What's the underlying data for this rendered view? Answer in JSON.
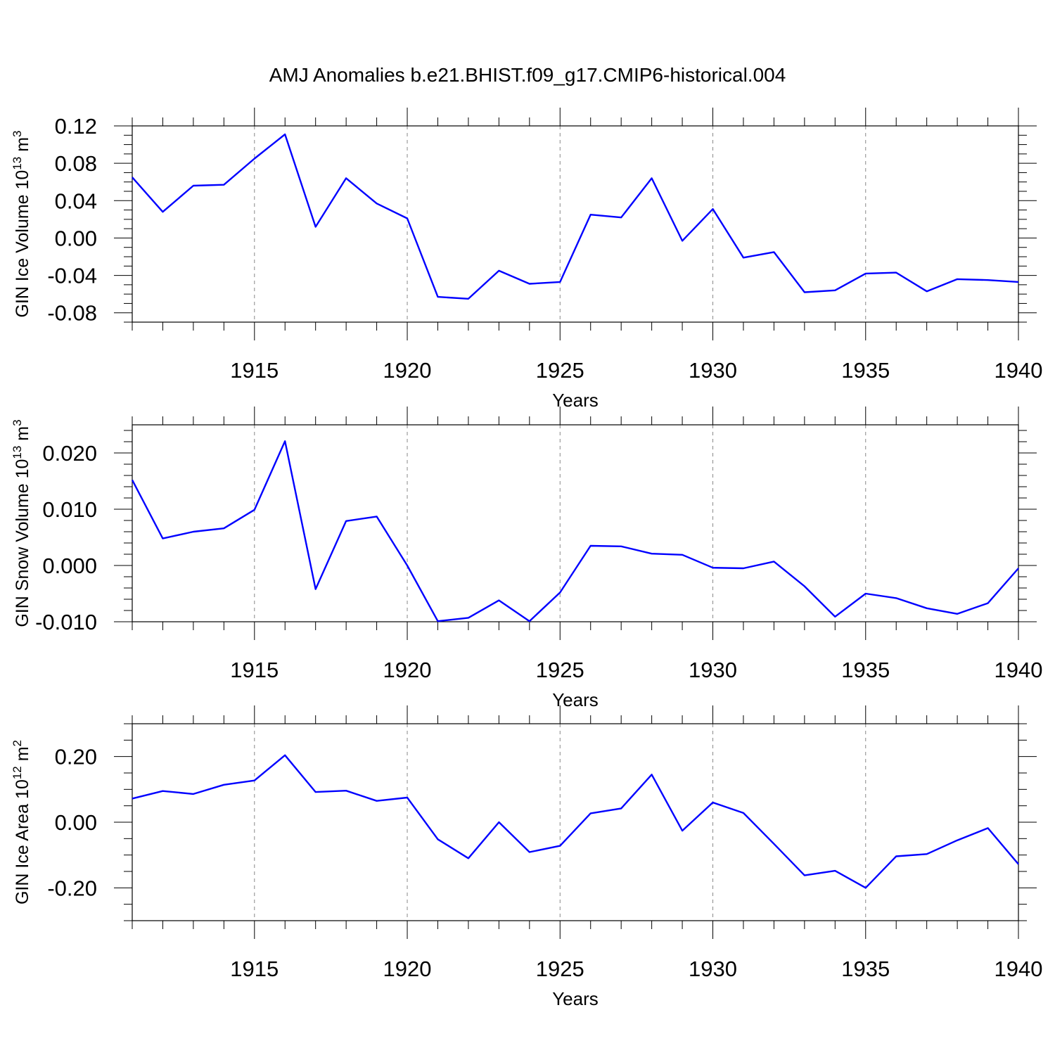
{
  "title": "AMJ Anomalies b.e21.BHIST.f09_g17.CMIP6-historical.004",
  "line_color": "#0000ff",
  "chart_data": [
    {
      "type": "line",
      "ylabel": "GIN Ice Volume 10",
      "ylabel_sup_exp": "13",
      "ylabel_unit": " m",
      "ylabel_sup_unit": "3",
      "xlabel": "Years",
      "xlim": [
        1911,
        1940
      ],
      "ylim": [
        -0.09,
        0.12
      ],
      "x_ticks": [
        1915,
        1920,
        1925,
        1930,
        1935,
        1940
      ],
      "x_tick_labels": [
        "1915",
        "1920",
        "1925",
        "1930",
        "1935",
        "1940"
      ],
      "y_ticks": [
        -0.08,
        -0.04,
        0.0,
        0.04,
        0.08,
        0.12
      ],
      "y_tick_labels": [
        "-0.08",
        "-0.04",
        "0.00",
        "0.04",
        "0.08",
        "0.12"
      ],
      "y_minor_step": 0.01,
      "grid": "dashed vertical at major x ticks",
      "x": [
        1911,
        1912,
        1913,
        1914,
        1915,
        1916,
        1917,
        1918,
        1919,
        1920,
        1921,
        1922,
        1923,
        1924,
        1925,
        1926,
        1927,
        1928,
        1929,
        1930,
        1931,
        1932,
        1933,
        1934,
        1935,
        1936,
        1937,
        1938,
        1939,
        1940
      ],
      "values": [
        0.065,
        0.028,
        0.056,
        0.057,
        0.085,
        0.111,
        0.012,
        0.064,
        0.037,
        0.021,
        -0.063,
        -0.065,
        -0.035,
        -0.049,
        -0.047,
        0.025,
        0.022,
        0.064,
        -0.003,
        0.031,
        -0.021,
        -0.015,
        -0.058,
        -0.056,
        -0.038,
        -0.037,
        -0.057,
        -0.044,
        -0.045,
        -0.047
      ]
    },
    {
      "type": "line",
      "ylabel": "GIN Snow Volume 10",
      "ylabel_sup_exp": "13",
      "ylabel_unit": " m",
      "ylabel_sup_unit": "3",
      "xlabel": "Years",
      "xlim": [
        1911,
        1940
      ],
      "ylim": [
        -0.01,
        0.025
      ],
      "x_ticks": [
        1915,
        1920,
        1925,
        1930,
        1935,
        1940
      ],
      "x_tick_labels": [
        "1915",
        "1920",
        "1925",
        "1930",
        "1935",
        "1940"
      ],
      "y_ticks": [
        -0.01,
        0.0,
        0.01,
        0.02
      ],
      "y_tick_labels": [
        "-0.010",
        "0.000",
        "0.010",
        "0.020"
      ],
      "y_minor_step": 0.002,
      "grid": "dashed vertical at major x ticks",
      "x": [
        1911,
        1912,
        1913,
        1914,
        1915,
        1916,
        1917,
        1918,
        1919,
        1920,
        1921,
        1922,
        1923,
        1924,
        1925,
        1926,
        1927,
        1928,
        1929,
        1930,
        1931,
        1932,
        1933,
        1934,
        1935,
        1936,
        1937,
        1938,
        1939,
        1940
      ],
      "values": [
        0.0152,
        0.0048,
        0.006,
        0.0066,
        0.0099,
        0.0221,
        -0.0042,
        0.0079,
        0.0087,
        0.0,
        -0.0099,
        -0.0093,
        -0.0062,
        -0.0099,
        -0.0048,
        0.0035,
        0.0034,
        0.0021,
        0.0019,
        -0.0004,
        -0.0005,
        0.0007,
        -0.0037,
        -0.0091,
        -0.005,
        -0.0058,
        -0.0076,
        -0.0086,
        -0.0067,
        -0.0005
      ]
    },
    {
      "type": "line",
      "ylabel": "GIN Ice Area 10",
      "ylabel_sup_exp": "12",
      "ylabel_unit": " m",
      "ylabel_sup_unit": "2",
      "xlabel": "Years",
      "xlim": [
        1911,
        1940
      ],
      "ylim": [
        -0.3,
        0.3
      ],
      "x_ticks": [
        1915,
        1920,
        1925,
        1930,
        1935,
        1940
      ],
      "x_tick_labels": [
        "1915",
        "1920",
        "1925",
        "1930",
        "1935",
        "1940"
      ],
      "y_ticks": [
        -0.2,
        0.0,
        0.2
      ],
      "y_tick_labels": [
        "-0.20",
        "0.00",
        "0.20"
      ],
      "y_minor_step": 0.05,
      "grid": "dashed vertical at major x ticks",
      "x": [
        1911,
        1912,
        1913,
        1914,
        1915,
        1916,
        1917,
        1918,
        1919,
        1920,
        1921,
        1922,
        1923,
        1924,
        1925,
        1926,
        1927,
        1928,
        1929,
        1930,
        1931,
        1932,
        1933,
        1934,
        1935,
        1936,
        1937,
        1938,
        1939,
        1940
      ],
      "values": [
        0.072,
        0.095,
        0.086,
        0.114,
        0.127,
        0.204,
        0.092,
        0.096,
        0.065,
        0.075,
        -0.052,
        -0.11,
        0.0,
        -0.091,
        -0.072,
        0.027,
        0.042,
        0.145,
        -0.026,
        0.06,
        0.028,
        -0.066,
        -0.162,
        -0.148,
        -0.2,
        -0.104,
        -0.097,
        -0.055,
        -0.018,
        -0.128
      ]
    }
  ]
}
